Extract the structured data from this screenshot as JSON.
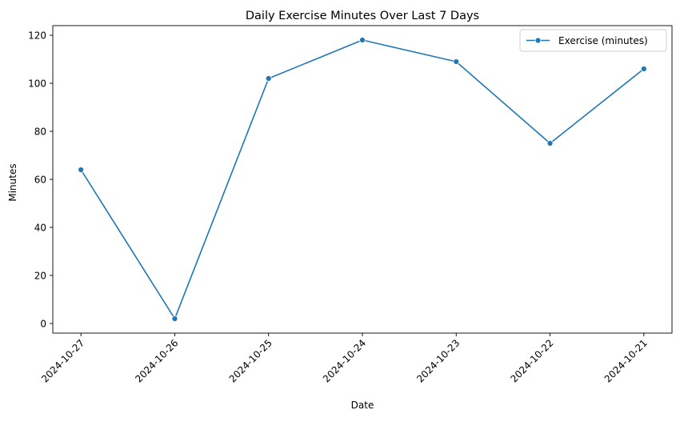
{
  "chart_data": {
    "type": "line",
    "title": "Daily Exercise Minutes Over Last 7 Days",
    "xlabel": "Date",
    "ylabel": "Minutes",
    "categories": [
      "2024-10-27",
      "2024-10-26",
      "2024-10-25",
      "2024-10-24",
      "2024-10-23",
      "2024-10-22",
      "2024-10-21"
    ],
    "series": [
      {
        "name": "Exercise (minutes)",
        "values": [
          64,
          2,
          102,
          118,
          109,
          75,
          106
        ],
        "color": "#1f77b4",
        "marker": "circle"
      }
    ],
    "ylim": [
      -4,
      124
    ],
    "yticks": [
      0,
      20,
      40,
      60,
      80,
      100,
      120
    ],
    "grid": false,
    "legend_position": "top-right"
  }
}
